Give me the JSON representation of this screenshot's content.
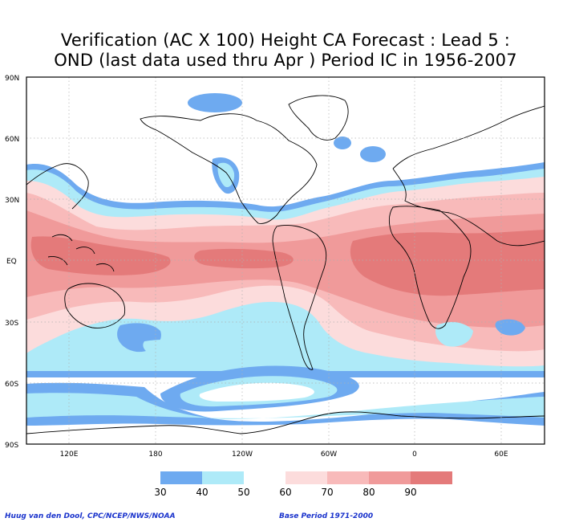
{
  "title_line1": "Verification (AC X 100) Height CA Forecast : Lead 5 :",
  "title_line2": "OND (last data used thru Apr ) Period IC in 1956-2007",
  "lat_labels": [
    "90N",
    "60N",
    "30N",
    "EQ",
    "30S",
    "60S",
    "90S"
  ],
  "lon_labels": [
    "120E",
    "180",
    "120W",
    "60W",
    "0",
    "60E"
  ],
  "legend": {
    "ticks": [
      "30",
      "40",
      "50",
      "60",
      "70",
      "80",
      "90"
    ],
    "colors": [
      "#6eaaf0",
      "#aeeaf8",
      "#ffffff",
      "#fcdcdc",
      "#f8baba",
      "#f09a9a",
      "#e47a7a",
      "#dc6262"
    ]
  },
  "credit_left": "Huug van den Dool, CPC/NCEP/NWS/NOAA",
  "credit_right": "Base Period 1971-2000",
  "colors": {
    "land_outline": "#000000",
    "grid": "#b0b0b0"
  }
}
